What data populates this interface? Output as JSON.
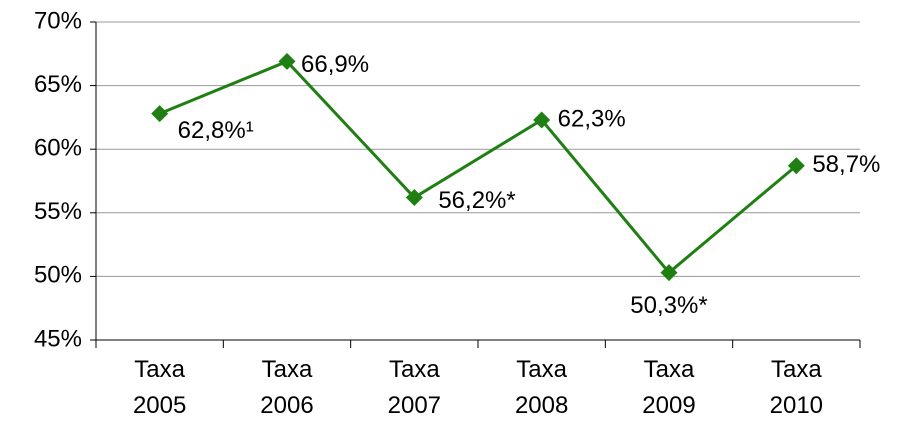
{
  "chart_data": {
    "type": "line",
    "categories": [
      "Taxa 2005",
      "Taxa 2006",
      "Taxa 2007",
      "Taxa 2008",
      "Taxa 2009",
      "Taxa 2010"
    ],
    "series": [
      {
        "color": "#1f7f12",
        "values": [
          62.8,
          66.9,
          56.2,
          62.3,
          50.3,
          58.7
        ],
        "value_labels": [
          "62,8%¹",
          "66,9%",
          "56,2%*",
          "62,3%",
          "50,3%*",
          "58,7%"
        ]
      }
    ],
    "ylim": [
      45,
      70
    ],
    "yticks": [
      {
        "value": 45,
        "label": "45%"
      },
      {
        "value": 50,
        "label": "50%"
      },
      {
        "value": 55,
        "label": "55%"
      },
      {
        "value": 60,
        "label": "60%"
      },
      {
        "value": 65,
        "label": "65%"
      },
      {
        "value": 70,
        "label": "70%"
      }
    ],
    "grid": true
  }
}
